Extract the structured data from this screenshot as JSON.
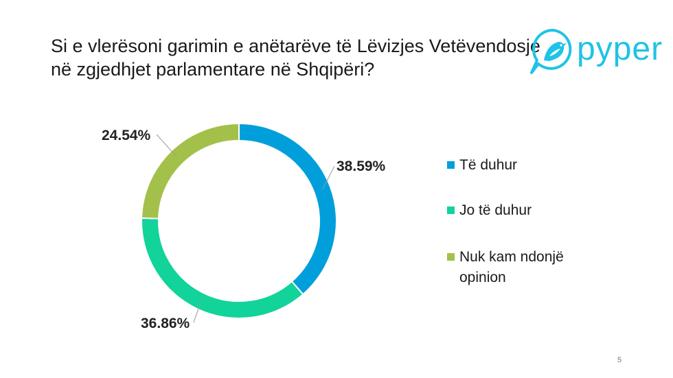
{
  "slide": {
    "title_line1": "Si e vlerësoni garimin e anëtarëve të Lëvizjes Vetëvendosje",
    "title_line2": "në zgjedhjet parlamentare në Shqipëri?",
    "page_number": "5"
  },
  "logo": {
    "text": "pyper",
    "icon": "bird-icon",
    "color": "#1ec3e6"
  },
  "chart_data": {
    "type": "pie",
    "variant": "donut",
    "categories": [
      "Të duhur",
      "Jo të duhur",
      "Nuk kam ndonjë opinion"
    ],
    "values": [
      38.59,
      36.86,
      24.54
    ],
    "value_labels": [
      "38.59%",
      "36.86%",
      "24.54%"
    ],
    "colors": [
      "#009fdb",
      "#12d39a",
      "#a3c14a"
    ],
    "legend_position": "right",
    "legend": [
      {
        "line1": "Të duhur",
        "line2": ""
      },
      {
        "line1": "Jo të duhur",
        "line2": ""
      },
      {
        "line1": "Nuk kam ndonjë",
        "line2": "opinion"
      }
    ]
  }
}
